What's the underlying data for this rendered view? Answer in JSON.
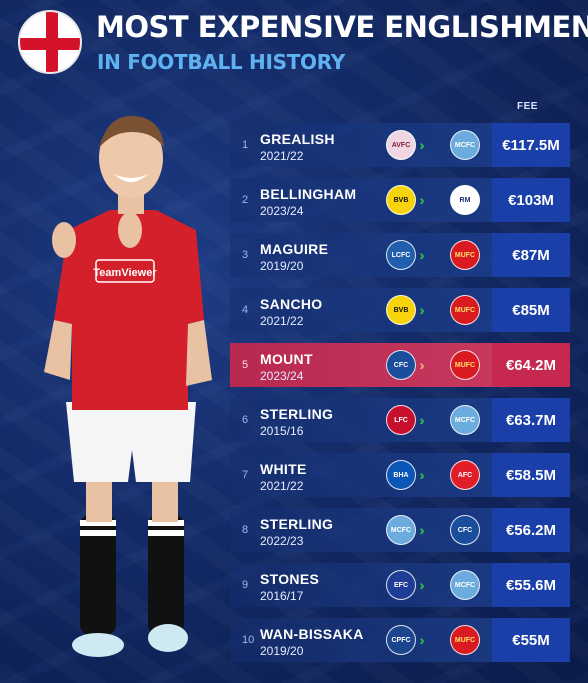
{
  "header": {
    "title": "MOST EXPENSIVE ENGLISHMEN",
    "subtitle": "IN FOOTBALL HISTORY",
    "flag_icon": "england-flag-icon",
    "fee_column": "FEE"
  },
  "player_image": {
    "icon": "footballer-photo",
    "shirt_sponsor": "TeamViewer"
  },
  "colors": {
    "row_band": "#1c3e8c",
    "fee_cell": "#1a3fa8",
    "highlight": "#c7284f",
    "arrows": "#28b84a",
    "subtitle": "#5fb2f2"
  },
  "chart_data": {
    "type": "table",
    "columns": [
      "rank",
      "player",
      "season",
      "from_club",
      "to_club",
      "fee"
    ],
    "rows": [
      {
        "rank": "1",
        "player": "GREALISH",
        "season": "2021/22",
        "from": "Aston Villa",
        "to": "Man City",
        "fee": "€117.5M",
        "from_crest": "aston-villa-crest-icon",
        "to_crest": "man-city-crest-icon",
        "fee_value_m": 117.5
      },
      {
        "rank": "2",
        "player": "BELLINGHAM",
        "season": "2023/24",
        "from": "Dortmund",
        "to": "Real Madrid",
        "fee": "€103M",
        "from_crest": "dortmund-crest-icon",
        "to_crest": "real-madrid-crest-icon",
        "fee_value_m": 103
      },
      {
        "rank": "3",
        "player": "MAGUIRE",
        "season": "2019/20",
        "from": "Leicester",
        "to": "Man United",
        "fee": "€87M",
        "from_crest": "leicester-crest-icon",
        "to_crest": "man-united-crest-icon",
        "fee_value_m": 87
      },
      {
        "rank": "4",
        "player": "SANCHO",
        "season": "2021/22",
        "from": "Dortmund",
        "to": "Man United",
        "fee": "€85M",
        "from_crest": "dortmund-crest-icon",
        "to_crest": "man-united-crest-icon",
        "fee_value_m": 85
      },
      {
        "rank": "5",
        "player": "MOUNT",
        "season": "2023/24",
        "from": "Chelsea",
        "to": "Man United",
        "fee": "€64.2M",
        "from_crest": "chelsea-crest-icon",
        "to_crest": "man-united-crest-icon",
        "fee_value_m": 64.2,
        "highlight": true
      },
      {
        "rank": "6",
        "player": "STERLING",
        "season": "2015/16",
        "from": "Liverpool",
        "to": "Man City",
        "fee": "€63.7M",
        "from_crest": "liverpool-crest-icon",
        "to_crest": "man-city-crest-icon",
        "fee_value_m": 63.7
      },
      {
        "rank": "7",
        "player": "WHITE",
        "season": "2021/22",
        "from": "Brighton",
        "to": "Arsenal",
        "fee": "€58.5M",
        "from_crest": "brighton-crest-icon",
        "to_crest": "arsenal-crest-icon",
        "fee_value_m": 58.5
      },
      {
        "rank": "8",
        "player": "STERLING",
        "season": "2022/23",
        "from": "Man City",
        "to": "Chelsea",
        "fee": "€56.2M",
        "from_crest": "man-city-crest-icon",
        "to_crest": "chelsea-crest-icon",
        "fee_value_m": 56.2
      },
      {
        "rank": "9",
        "player": "STONES",
        "season": "2016/17",
        "from": "Everton",
        "to": "Man City",
        "fee": "€55.6M",
        "from_crest": "everton-crest-icon",
        "to_crest": "man-city-crest-icon",
        "fee_value_m": 55.6
      },
      {
        "rank": "10",
        "player": "WAN-BISSAKA",
        "season": "2019/20",
        "from": "Crystal Palace",
        "to": "Man United",
        "fee": "€55M",
        "from_crest": "crystal-palace-crest-icon",
        "to_crest": "man-united-crest-icon",
        "fee_value_m": 55
      }
    ]
  }
}
